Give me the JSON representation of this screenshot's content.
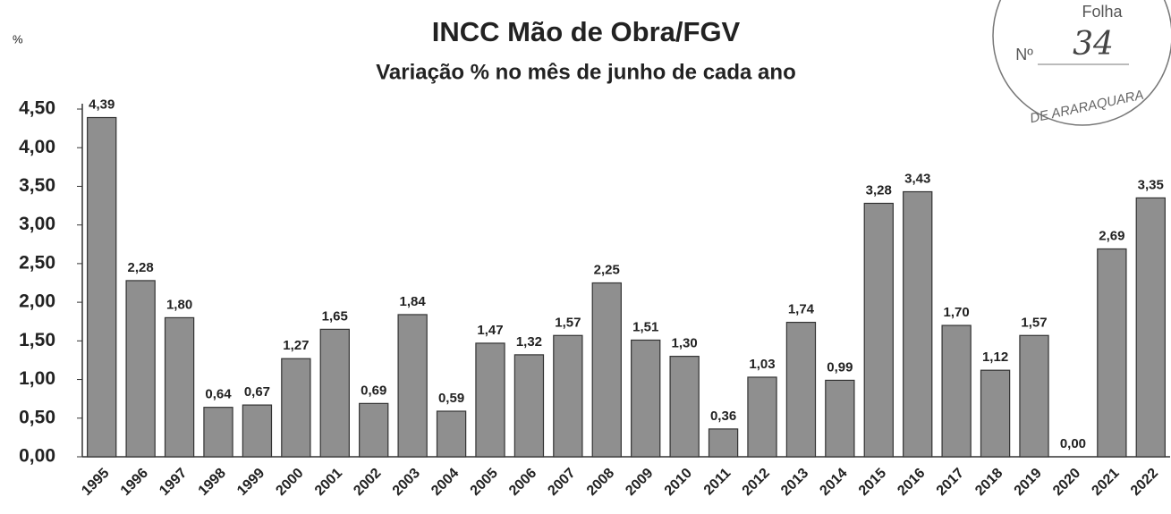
{
  "chart_data": {
    "type": "bar",
    "title": "INCC Mão de Obra/FGV",
    "subtitle": "Variação % no mês de junho de cada ano",
    "y_unit_label": "%",
    "categories": [
      "1995",
      "1996",
      "1997",
      "1998",
      "1999",
      "2000",
      "2001",
      "2002",
      "2003",
      "2004",
      "2005",
      "2006",
      "2007",
      "2008",
      "2009",
      "2010",
      "2011",
      "2012",
      "2013",
      "2014",
      "2015",
      "2016",
      "2017",
      "2018",
      "2019",
      "2020",
      "2021",
      "2022"
    ],
    "values": [
      4.39,
      2.28,
      1.8,
      0.64,
      0.67,
      1.27,
      1.65,
      0.69,
      1.84,
      0.59,
      1.47,
      1.32,
      1.57,
      2.25,
      1.51,
      1.3,
      0.36,
      1.03,
      1.74,
      0.99,
      3.28,
      3.43,
      1.7,
      1.12,
      1.57,
      0.0,
      2.69,
      3.35
    ],
    "value_labels": [
      "4,39",
      "2,28",
      "1,80",
      "0,64",
      "0,67",
      "1,27",
      "1,65",
      "0,69",
      "1,84",
      "0,59",
      "1,47",
      "1,32",
      "1,57",
      "2,25",
      "1,51",
      "1,30",
      "0,36",
      "1,03",
      "1,74",
      "0,99",
      "3,28",
      "3,43",
      "1,70",
      "1,12",
      "1,57",
      "0,00",
      "2,69",
      "3,35"
    ],
    "color": "#8f8f8f",
    "ylim": [
      0,
      4.5
    ],
    "yticks": [
      {
        "value": 0,
        "label": "0,00"
      },
      {
        "value": 0.5,
        "label": "0,50"
      },
      {
        "value": 1,
        "label": "1,00"
      },
      {
        "value": 1.5,
        "label": "1,50"
      },
      {
        "value": 2,
        "label": "2,00"
      },
      {
        "value": 2.5,
        "label": "2,50"
      },
      {
        "value": 3,
        "label": "3,00"
      },
      {
        "value": 3.5,
        "label": "3,50"
      },
      {
        "value": 4,
        "label": "4,00"
      },
      {
        "value": 4.5,
        "label": "4,50"
      }
    ],
    "grid": false
  },
  "stamp": {
    "sheet": "Folha",
    "number_label": "Nº",
    "number": "34",
    "city": "DE ARARAQUARA"
  }
}
